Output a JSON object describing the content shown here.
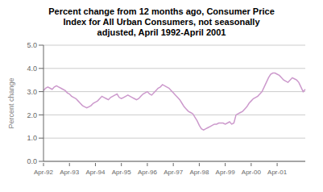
{
  "chart_data": {
    "type": "line",
    "title": "Percent change from 12 months ago, Consumer Price\nIndex for All Urban Consumers, not seasonally\nadjusted, April 1992-April 2001",
    "ylabel": "Percent change",
    "color": "#cc99cc",
    "grid": true,
    "ylim": [
      0.0,
      5.0
    ],
    "yticks": [
      {
        "value": 0.0,
        "label": "0.0"
      },
      {
        "value": 1.0,
        "label": "1.0"
      },
      {
        "value": 2.0,
        "label": "2.0"
      },
      {
        "value": 3.0,
        "label": "3.0"
      },
      {
        "value": 4.0,
        "label": "4.0"
      },
      {
        "value": 5.0,
        "label": "5.0"
      }
    ],
    "categories": [
      "Apr-92",
      null,
      null,
      null,
      null,
      null,
      null,
      null,
      null,
      null,
      null,
      null,
      "Apr-93",
      null,
      null,
      null,
      null,
      null,
      null,
      null,
      null,
      null,
      null,
      null,
      "Apr-94",
      null,
      null,
      null,
      null,
      null,
      null,
      null,
      null,
      null,
      null,
      null,
      "Apr-95",
      null,
      null,
      null,
      null,
      null,
      null,
      null,
      null,
      null,
      null,
      null,
      "Apr-96",
      null,
      null,
      null,
      null,
      null,
      null,
      null,
      null,
      null,
      null,
      null,
      "Apr-97",
      null,
      null,
      null,
      null,
      null,
      null,
      null,
      null,
      null,
      null,
      null,
      "Apr-98",
      null,
      null,
      null,
      null,
      null,
      null,
      null,
      null,
      null,
      null,
      null,
      "Apr-99",
      null,
      null,
      null,
      null,
      null,
      null,
      null,
      null,
      null,
      null,
      null,
      "Apr-00",
      null,
      null,
      null,
      null,
      null,
      null,
      null,
      null,
      null,
      null,
      null,
      "Apr-01",
      null,
      null,
      null,
      null,
      null,
      null,
      null,
      null,
      null,
      null,
      null,
      null,
      null
    ],
    "values": [
      3.05,
      3.15,
      3.2,
      3.15,
      3.1,
      3.2,
      3.25,
      3.2,
      3.15,
      3.1,
      3.05,
      2.95,
      2.9,
      2.8,
      2.75,
      2.7,
      2.6,
      2.5,
      2.4,
      2.35,
      2.3,
      2.35,
      2.4,
      2.5,
      2.55,
      2.6,
      2.7,
      2.8,
      2.75,
      2.7,
      2.65,
      2.75,
      2.8,
      2.85,
      2.9,
      2.75,
      2.7,
      2.75,
      2.8,
      2.85,
      2.8,
      2.75,
      2.7,
      2.65,
      2.7,
      2.8,
      2.9,
      2.95,
      3.0,
      2.9,
      2.85,
      2.95,
      3.05,
      3.15,
      3.2,
      3.3,
      3.25,
      3.2,
      3.15,
      3.05,
      2.95,
      2.85,
      2.75,
      2.65,
      2.5,
      2.35,
      2.25,
      2.15,
      2.1,
      2.05,
      1.9,
      1.75,
      1.55,
      1.4,
      1.35,
      1.4,
      1.45,
      1.5,
      1.55,
      1.6,
      1.6,
      1.65,
      1.65,
      1.65,
      1.6,
      1.65,
      1.7,
      1.6,
      1.65,
      2.0,
      2.05,
      2.1,
      2.15,
      2.25,
      2.35,
      2.5,
      2.6,
      2.7,
      2.75,
      2.8,
      2.9,
      3.0,
      3.2,
      3.4,
      3.6,
      3.75,
      3.8,
      3.8,
      3.75,
      3.7,
      3.6,
      3.5,
      3.45,
      3.4,
      3.5,
      3.6,
      3.55,
      3.5,
      3.4,
      3.2,
      3.0,
      3.1
    ]
  }
}
